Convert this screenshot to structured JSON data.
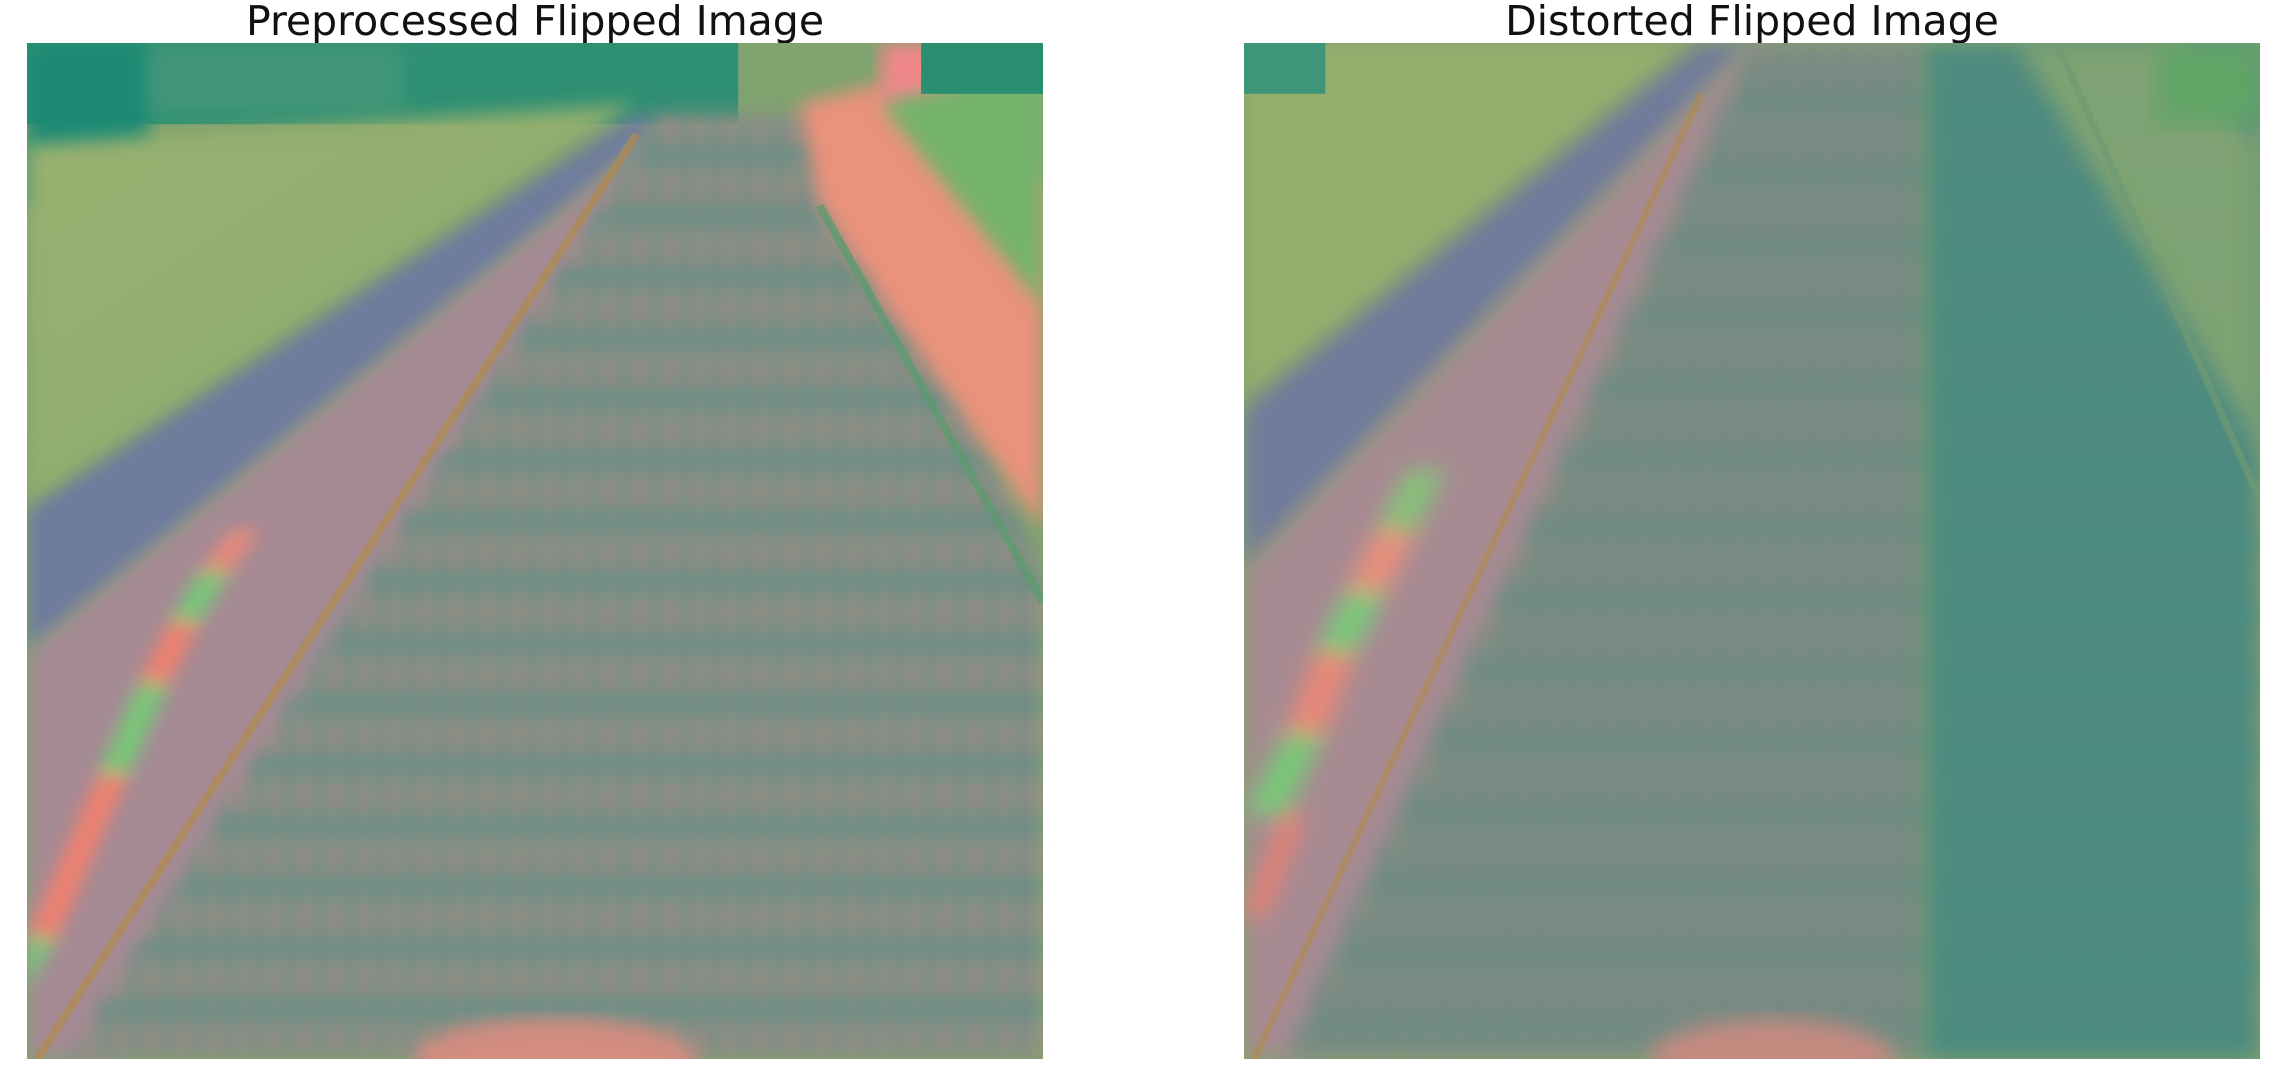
{
  "panels": [
    {
      "title": "Preprocessed Flipped Image",
      "image_description": "pixelated false-color road photo, road with dashed lane edge and curb stripes, flipped horizontally"
    },
    {
      "title": "Distorted Flipped Image",
      "image_description": "same road photo with horizontal shift distortion and darkened right half"
    }
  ],
  "colors": {
    "grass": "#8fb06a",
    "grass_dark": "#2f8f73",
    "road": "#6f8f86",
    "road_pink": "#c98a80",
    "curb_red": "#f08070",
    "curb_green": "#78c878",
    "sidewalk": "#e9927c",
    "sky_teal": "#1f8a74",
    "lane_line": "#b08a50",
    "background": "#ffffff",
    "title_text": "#111111"
  }
}
